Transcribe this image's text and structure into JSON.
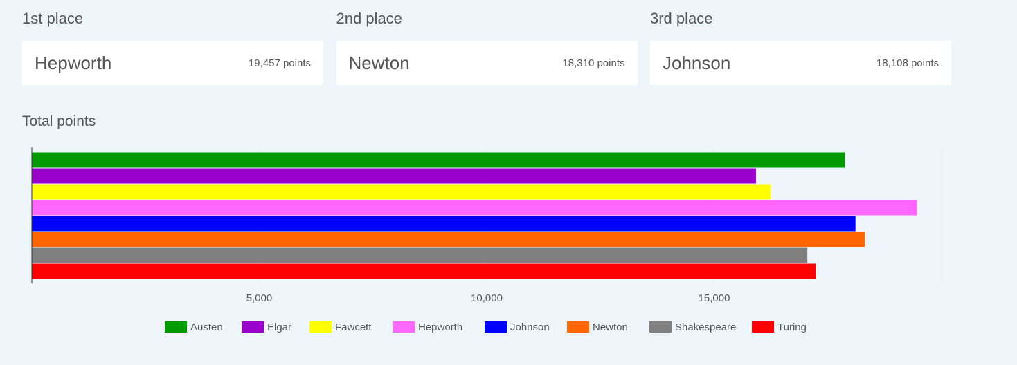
{
  "podium": [
    {
      "label": "1st place",
      "name": "Hepworth",
      "points": "19,457 points"
    },
    {
      "label": "2nd place",
      "name": "Newton",
      "points": "18,310 points"
    },
    {
      "label": "3rd place",
      "name": "Johnson",
      "points": "18,108 points"
    }
  ],
  "chart_data": {
    "type": "bar",
    "orientation": "horizontal",
    "title": "Total points",
    "series": [
      {
        "name": "Austen",
        "color": "#009900",
        "values": [
          17870
        ]
      },
      {
        "name": "Elgar",
        "color": "#9900cc",
        "values": [
          15920
        ]
      },
      {
        "name": "Fawcett",
        "color": "#ffff00",
        "values": [
          16240
        ]
      },
      {
        "name": "Hepworth",
        "color": "#ff66ff",
        "values": [
          19457
        ]
      },
      {
        "name": "Johnson",
        "color": "#0000ff",
        "values": [
          18108
        ]
      },
      {
        "name": "Newton",
        "color": "#ff6600",
        "values": [
          18310
        ]
      },
      {
        "name": "Shakespeare",
        "color": "#808080",
        "values": [
          17050
        ]
      },
      {
        "name": "Turing",
        "color": "#ff0000",
        "values": [
          17230
        ]
      }
    ],
    "xlim": [
      0,
      20000
    ],
    "xticks": [
      {
        "value": 5000,
        "label": "5,000"
      },
      {
        "value": 10000,
        "label": "10,000"
      },
      {
        "value": 15000,
        "label": "15,000"
      }
    ],
    "grid": true,
    "legend": "bottom"
  }
}
